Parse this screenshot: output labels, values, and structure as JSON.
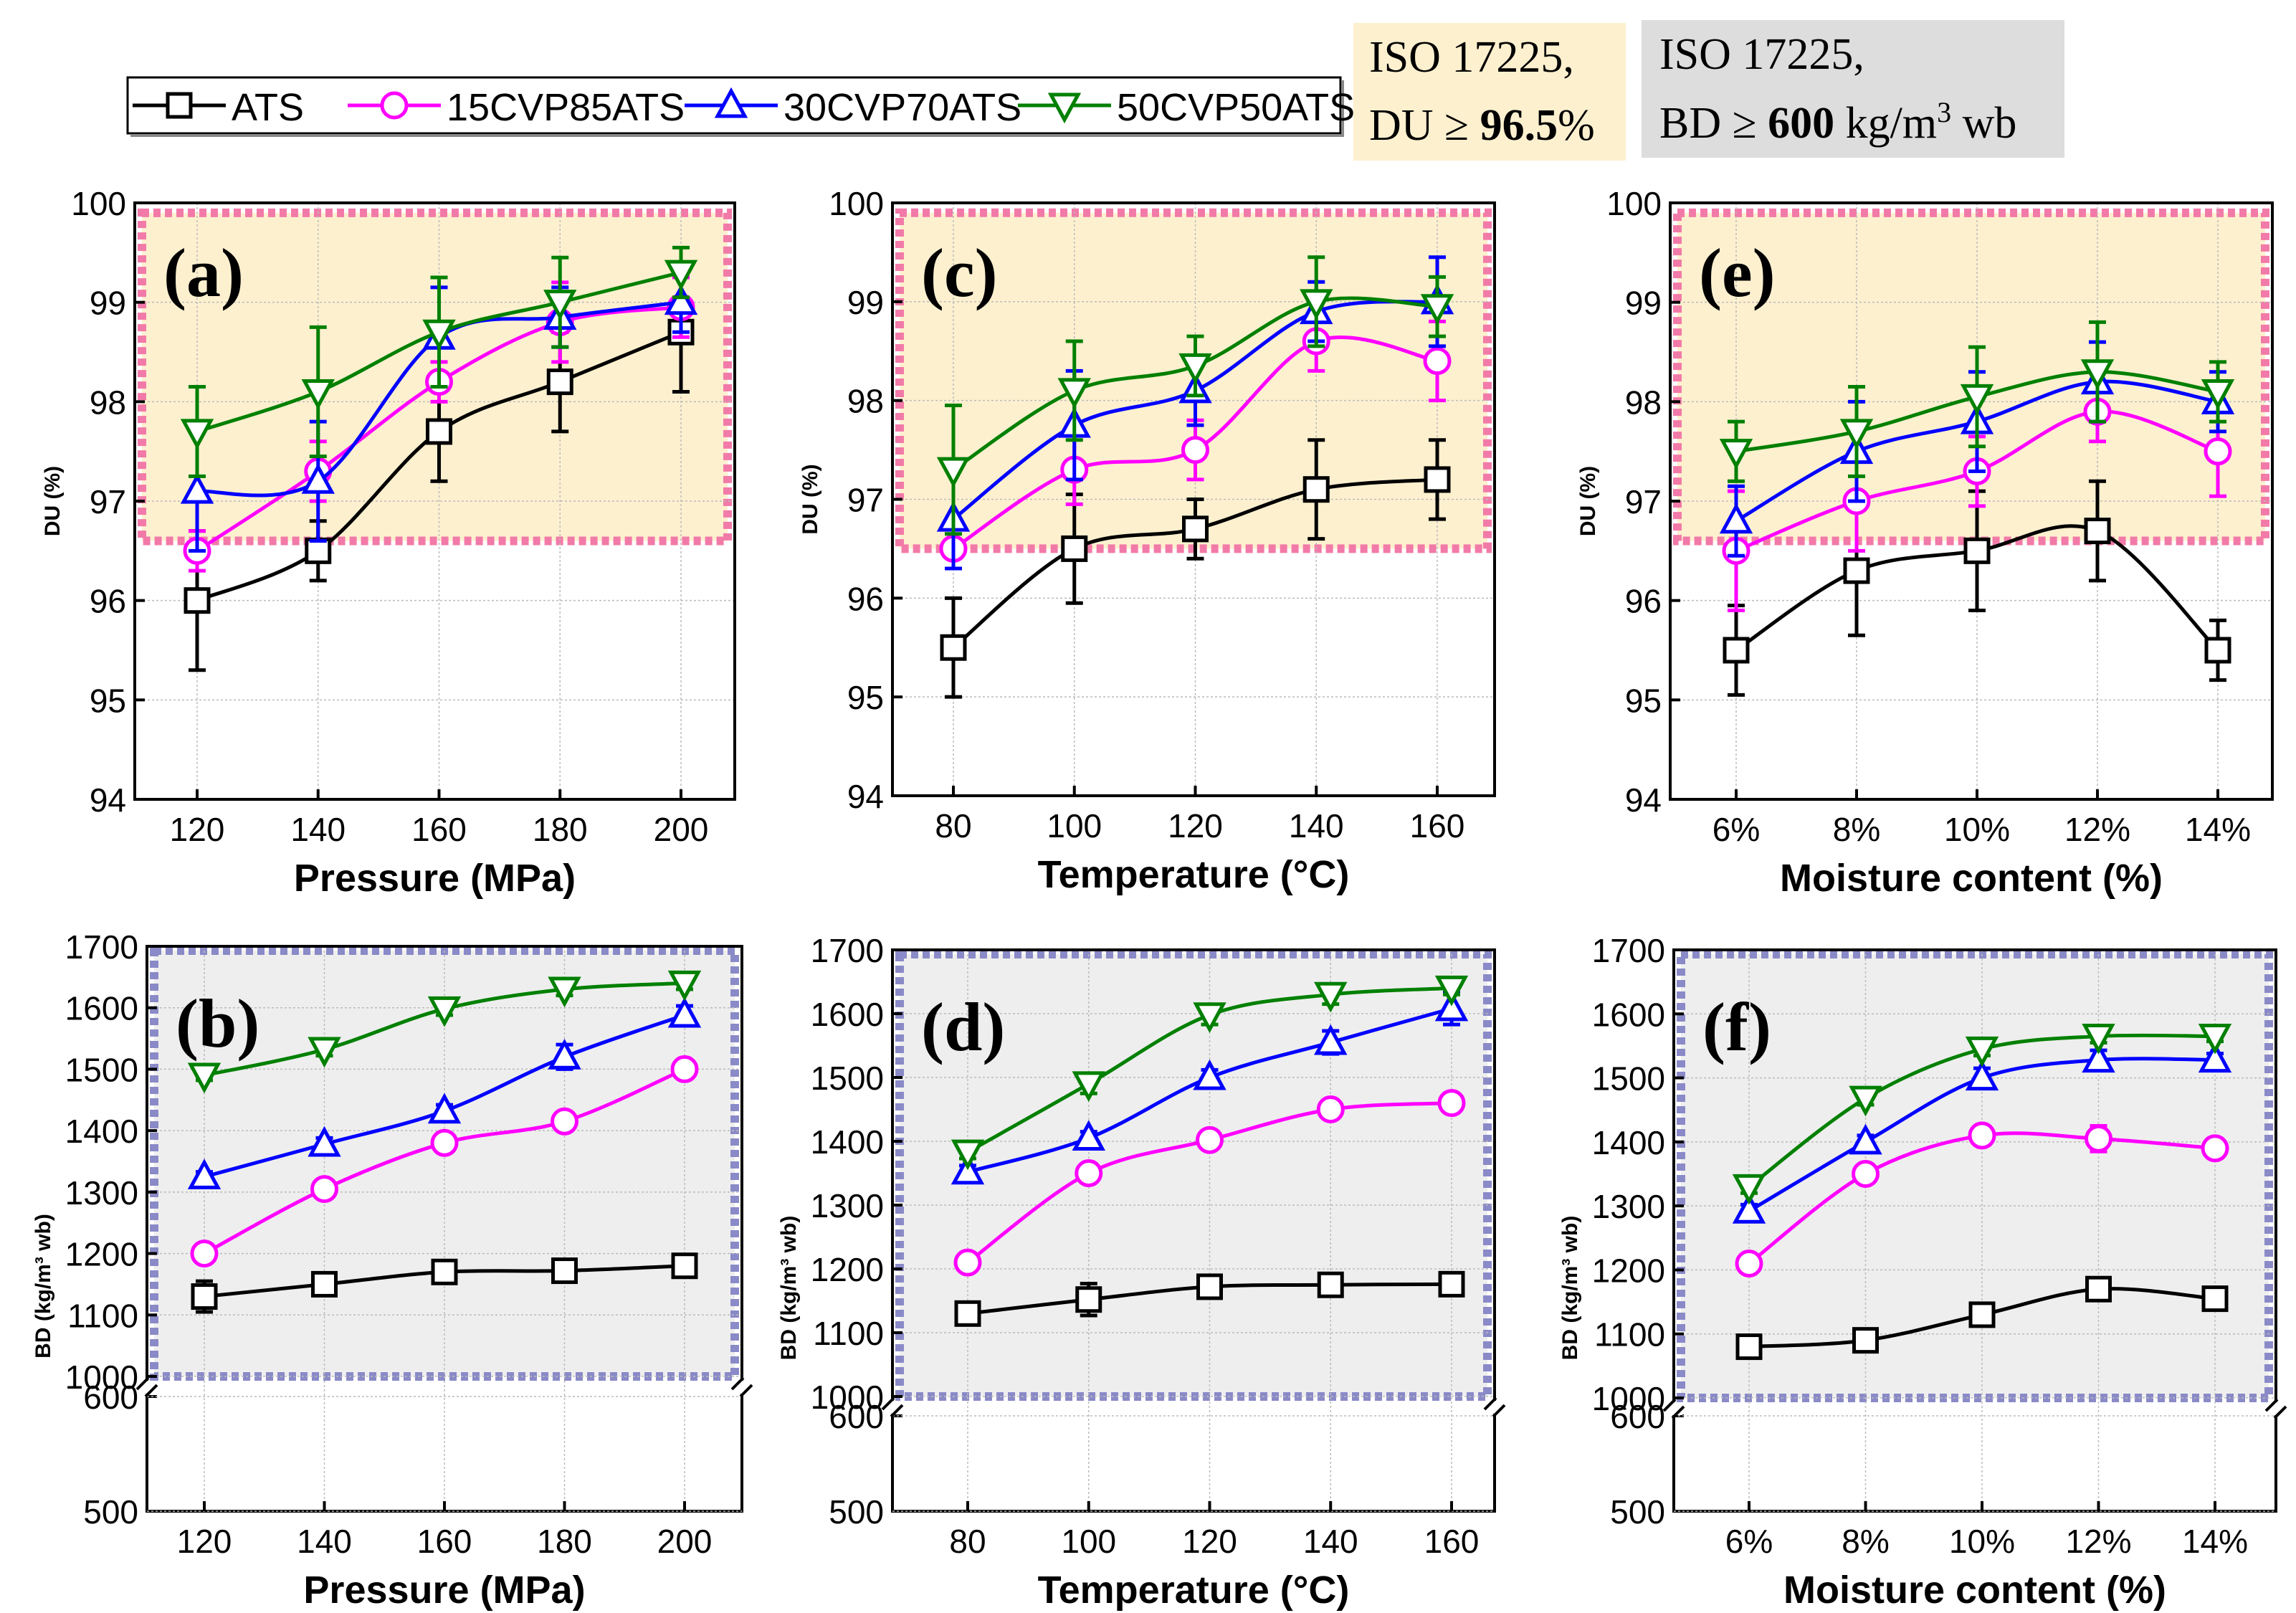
{
  "legend": {
    "entries": [
      {
        "name": "ATS",
        "color": "#000000",
        "marker": "square"
      },
      {
        "name": "15CVP85ATS",
        "color": "#ff00ff",
        "marker": "circle"
      },
      {
        "name": "30CVP70ATS",
        "color": "#0000ff",
        "marker": "triangle-up"
      },
      {
        "name": "50CVP50ATS",
        "color": "#008000",
        "marker": "triangle-down"
      }
    ]
  },
  "standards": {
    "du_box": {
      "line1": "ISO 17225,",
      "line2_prefix": "DU ≥ ",
      "line2_value": "96.5",
      "line2_suffix": "%",
      "color": "#fdf0cf"
    },
    "bd_box": {
      "line1": "ISO 17225,",
      "line2_prefix": "BD ≥ ",
      "line2_value": "600",
      "line2_unit": " kg/m",
      "line2_sup": "3",
      "line2_suffix": " wb",
      "color": "#dddddd"
    }
  },
  "colors": {
    "du_region_fill": "#fdf0cf",
    "du_region_border": "#f27aa8",
    "bd_region_fill": "#eeeeee",
    "bd_region_border": "#8a8ac8"
  },
  "chart_data": [
    {
      "id": "a",
      "type": "line",
      "panel_label": "(a)",
      "xlabel": "Pressure (MPa)",
      "ylabel": "DU (%)",
      "categories": [
        "120",
        "140",
        "160",
        "180",
        "200"
      ],
      "ylim": [
        94,
        100
      ],
      "yticks": [
        94,
        95,
        96,
        97,
        98,
        99,
        100
      ],
      "shaded_region": [
        96.6,
        99.9
      ],
      "series": [
        {
          "name": "ATS",
          "values": [
            96.0,
            96.5,
            97.7,
            98.2,
            98.7
          ],
          "errors": [
            0.7,
            0.3,
            0.5,
            0.5,
            0.6
          ]
        },
        {
          "name": "15CVP85ATS",
          "values": [
            96.5,
            97.3,
            98.2,
            98.8,
            98.95
          ],
          "errors": [
            0.2,
            0.3,
            0.2,
            0.4,
            0.3
          ]
        },
        {
          "name": "30CVP70ATS",
          "values": [
            97.1,
            97.2,
            98.65,
            98.85,
            99.0
          ],
          "errors": [
            0.6,
            0.6,
            0.5,
            0.3,
            0.3
          ]
        },
        {
          "name": "50CVP50ATS",
          "values": [
            97.7,
            98.1,
            98.7,
            99.0,
            99.3
          ],
          "errors": [
            0.45,
            0.65,
            0.55,
            0.45,
            0.25
          ]
        }
      ]
    },
    {
      "id": "c",
      "type": "line",
      "panel_label": "(c)",
      "xlabel": "Temperature (°C)",
      "ylabel": "DU (%)",
      "categories": [
        "80",
        "100",
        "120",
        "140",
        "160"
      ],
      "ylim": [
        94,
        100
      ],
      "yticks": [
        94,
        95,
        96,
        97,
        98,
        99,
        100
      ],
      "shaded_region": [
        96.5,
        99.9
      ],
      "series": [
        {
          "name": "ATS",
          "values": [
            95.5,
            96.5,
            96.7,
            97.1,
            97.2
          ],
          "errors": [
            0.5,
            0.55,
            0.3,
            0.5,
            0.4
          ]
        },
        {
          "name": "15CVP85ATS",
          "values": [
            96.5,
            97.3,
            97.5,
            98.6,
            98.4
          ],
          "errors": [
            0.2,
            0.35,
            0.3,
            0.3,
            0.4
          ]
        },
        {
          "name": "30CVP70ATS",
          "values": [
            96.8,
            97.75,
            98.1,
            98.9,
            99.0
          ],
          "errors": [
            0.5,
            0.55,
            0.35,
            0.3,
            0.45
          ]
        },
        {
          "name": "50CVP50ATS",
          "values": [
            97.3,
            98.1,
            98.35,
            99.0,
            98.95
          ],
          "errors": [
            0.65,
            0.5,
            0.3,
            0.45,
            0.3
          ]
        }
      ]
    },
    {
      "id": "e",
      "type": "line",
      "panel_label": "(e)",
      "xlabel": "Moisture content (%)",
      "ylabel": "DU (%)",
      "categories": [
        "6%",
        "8%",
        "10%",
        "12%",
        "14%"
      ],
      "ylim": [
        94,
        100
      ],
      "yticks": [
        94,
        95,
        96,
        97,
        98,
        99,
        100
      ],
      "shaded_region": [
        96.6,
        99.9
      ],
      "series": [
        {
          "name": "ATS",
          "values": [
            95.5,
            96.3,
            96.5,
            96.7,
            95.5
          ],
          "errors": [
            0.45,
            0.65,
            0.6,
            0.5,
            0.3
          ]
        },
        {
          "name": "15CVP85ATS",
          "values": [
            96.5,
            97.0,
            97.3,
            97.9,
            97.5
          ],
          "errors": [
            0.6,
            0.5,
            0.35,
            0.3,
            0.45
          ]
        },
        {
          "name": "30CVP70ATS",
          "values": [
            96.8,
            97.5,
            97.8,
            98.2,
            98.0
          ],
          "errors": [
            0.35,
            0.5,
            0.5,
            0.4,
            0.3
          ]
        },
        {
          "name": "50CVP50ATS",
          "values": [
            97.5,
            97.7,
            98.05,
            98.3,
            98.1
          ],
          "errors": [
            0.3,
            0.45,
            0.5,
            0.5,
            0.3
          ]
        }
      ]
    },
    {
      "id": "b",
      "type": "line",
      "panel_label": "(b)",
      "xlabel": "Pressure (MPa)",
      "ylabel": "BD (kg/m³ wb)",
      "categories": [
        "120",
        "140",
        "160",
        "180",
        "200"
      ],
      "ylim_upper": [
        1000,
        1700
      ],
      "yticks_upper": [
        1000,
        1100,
        1200,
        1300,
        1400,
        1500,
        1600,
        1700
      ],
      "ylim_lower": [
        500,
        600
      ],
      "yticks_lower": [
        500,
        600
      ],
      "shaded_region": [
        1000,
        1690
      ],
      "series": [
        {
          "name": "ATS",
          "values": [
            1130,
            1150,
            1170,
            1172,
            1180
          ],
          "errors": [
            25,
            10,
            10,
            18,
            10
          ]
        },
        {
          "name": "15CVP85ATS",
          "values": [
            1200,
            1305,
            1380,
            1415,
            1500
          ],
          "errors": [
            8,
            10,
            15,
            12,
            10
          ]
        },
        {
          "name": "30CVP70ATS",
          "values": [
            1325,
            1378,
            1432,
            1520,
            1588
          ],
          "errors": [
            8,
            10,
            10,
            20,
            15
          ]
        },
        {
          "name": "50CVP50ATS",
          "values": [
            1490,
            1532,
            1598,
            1630,
            1640
          ],
          "errors": [
            8,
            10,
            10,
            10,
            10
          ]
        }
      ]
    },
    {
      "id": "d",
      "type": "line",
      "panel_label": "(d)",
      "xlabel": "Temperature (°C)",
      "ylabel": "BD (kg/m³ wb)",
      "categories": [
        "80",
        "100",
        "120",
        "140",
        "160"
      ],
      "ylim_upper": [
        1000,
        1700
      ],
      "yticks_upper": [
        1000,
        1100,
        1200,
        1300,
        1400,
        1500,
        1600,
        1700
      ],
      "ylim_lower": [
        500,
        600
      ],
      "yticks_lower": [
        500,
        600
      ],
      "shaded_region": [
        1000,
        1690
      ],
      "series": [
        {
          "name": "ATS",
          "values": [
            1130,
            1152,
            1172,
            1175,
            1176
          ],
          "errors": [
            10,
            25,
            12,
            15,
            10
          ]
        },
        {
          "name": "15CVP85ATS",
          "values": [
            1210,
            1350,
            1402,
            1450,
            1460
          ],
          "errors": [
            10,
            10,
            10,
            10,
            15
          ]
        },
        {
          "name": "30CVP70ATS",
          "values": [
            1352,
            1405,
            1500,
            1555,
            1608
          ],
          "errors": [
            10,
            10,
            12,
            18,
            25
          ]
        },
        {
          "name": "50CVP50ATS",
          "values": [
            1383,
            1490,
            1598,
            1630,
            1640
          ],
          "errors": [
            10,
            15,
            15,
            15,
            10
          ]
        }
      ]
    },
    {
      "id": "f",
      "type": "line",
      "panel_label": "(f)",
      "xlabel": "Moisture content (%)",
      "ylabel": "BD (kg/m³ wb)",
      "categories": [
        "6%",
        "8%",
        "10%",
        "12%",
        "14%"
      ],
      "ylim_upper": [
        1000,
        1700
      ],
      "yticks_upper": [
        1000,
        1100,
        1200,
        1300,
        1400,
        1500,
        1600,
        1700
      ],
      "ylim_lower": [
        500,
        600
      ],
      "yticks_lower": [
        500,
        600
      ],
      "shaded_region": [
        1000,
        1690
      ],
      "series": [
        {
          "name": "ATS",
          "values": [
            1080,
            1090,
            1130,
            1170,
            1155
          ],
          "errors": [
            8,
            8,
            15,
            15,
            10
          ]
        },
        {
          "name": "15CVP85ATS",
          "values": [
            1210,
            1350,
            1410,
            1405,
            1390
          ],
          "errors": [
            10,
            10,
            15,
            20,
            15
          ]
        },
        {
          "name": "30CVP70ATS",
          "values": [
            1292,
            1400,
            1500,
            1528,
            1528
          ],
          "errors": [
            10,
            10,
            15,
            15,
            10
          ]
        },
        {
          "name": "50CVP50ATS",
          "values": [
            1330,
            1468,
            1545,
            1565,
            1565
          ],
          "errors": [
            10,
            10,
            10,
            10,
            8
          ]
        }
      ]
    }
  ]
}
